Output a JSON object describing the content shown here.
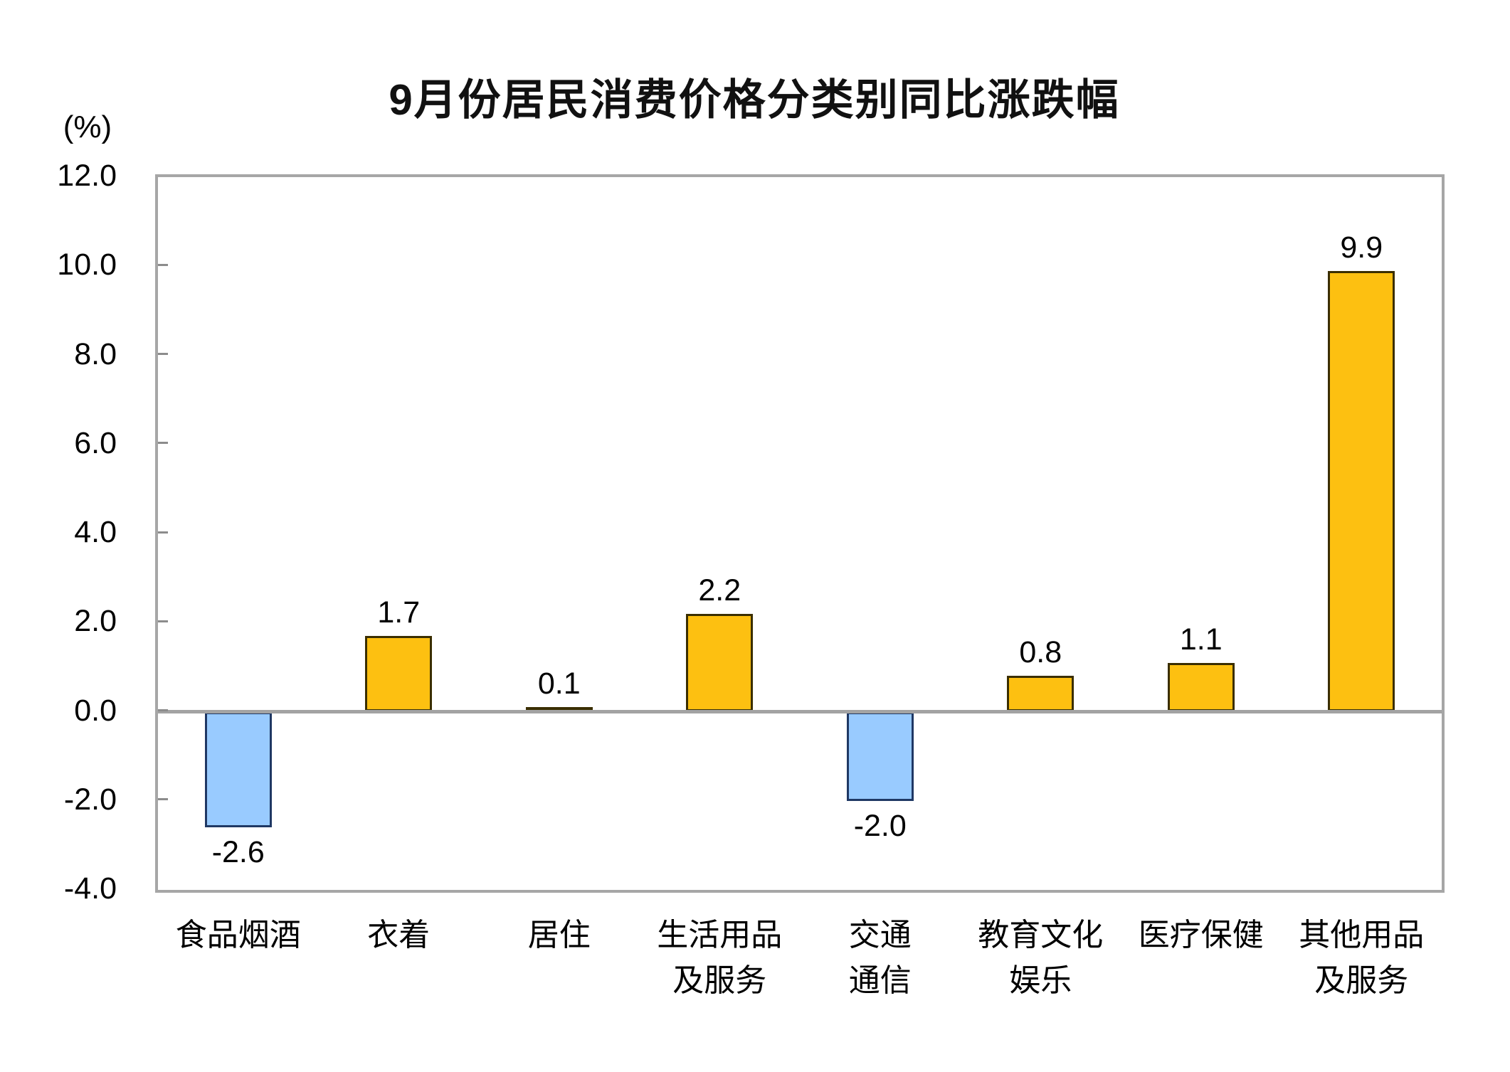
{
  "colors": {
    "positive_fill": "#FDC011",
    "positive_border": "#3A2E00",
    "negative_fill": "#99CBFF",
    "negative_border": "#1F3864",
    "axis_box": "#A6A6A6",
    "zero_line": "#A3A3A3",
    "tick": "#8C8C8C",
    "text": "#000000"
  },
  "chart_data": {
    "type": "bar",
    "title": "9月份居民消费价格分类别同比涨跌幅",
    "ylabel": "(%)",
    "categories": [
      "食品烟酒",
      "衣着",
      "居住",
      "生活用品及服务",
      "交通通信",
      "教育文化娱乐",
      "医疗保健",
      "其他用品及服务"
    ],
    "category_lines": [
      [
        "食品烟酒"
      ],
      [
        "衣着"
      ],
      [
        "居住"
      ],
      [
        "生活用品",
        "及服务"
      ],
      [
        "交通",
        "通信"
      ],
      [
        "教育文化",
        "娱乐"
      ],
      [
        "医疗保健"
      ],
      [
        "其他用品",
        "及服务"
      ]
    ],
    "values": [
      -2.6,
      1.7,
      0.1,
      2.2,
      -2.0,
      0.8,
      1.1,
      9.9
    ],
    "data_labels": [
      "-2.6",
      "1.7",
      "0.1",
      "2.2",
      "-2.0",
      "0.8",
      "1.1",
      "9.9"
    ],
    "ylim": [
      -4.0,
      12.0
    ],
    "ytick_interval": 2.0,
    "ytick_labels": [
      "12.0",
      "10.0",
      "8.0",
      "6.0",
      "4.0",
      "2.0",
      "0.0",
      "-2.0",
      "-4.0"
    ],
    "grid": false,
    "legend": false,
    "bar_color_rule": "positive=gold, negative=light-blue",
    "xlabel": ""
  }
}
